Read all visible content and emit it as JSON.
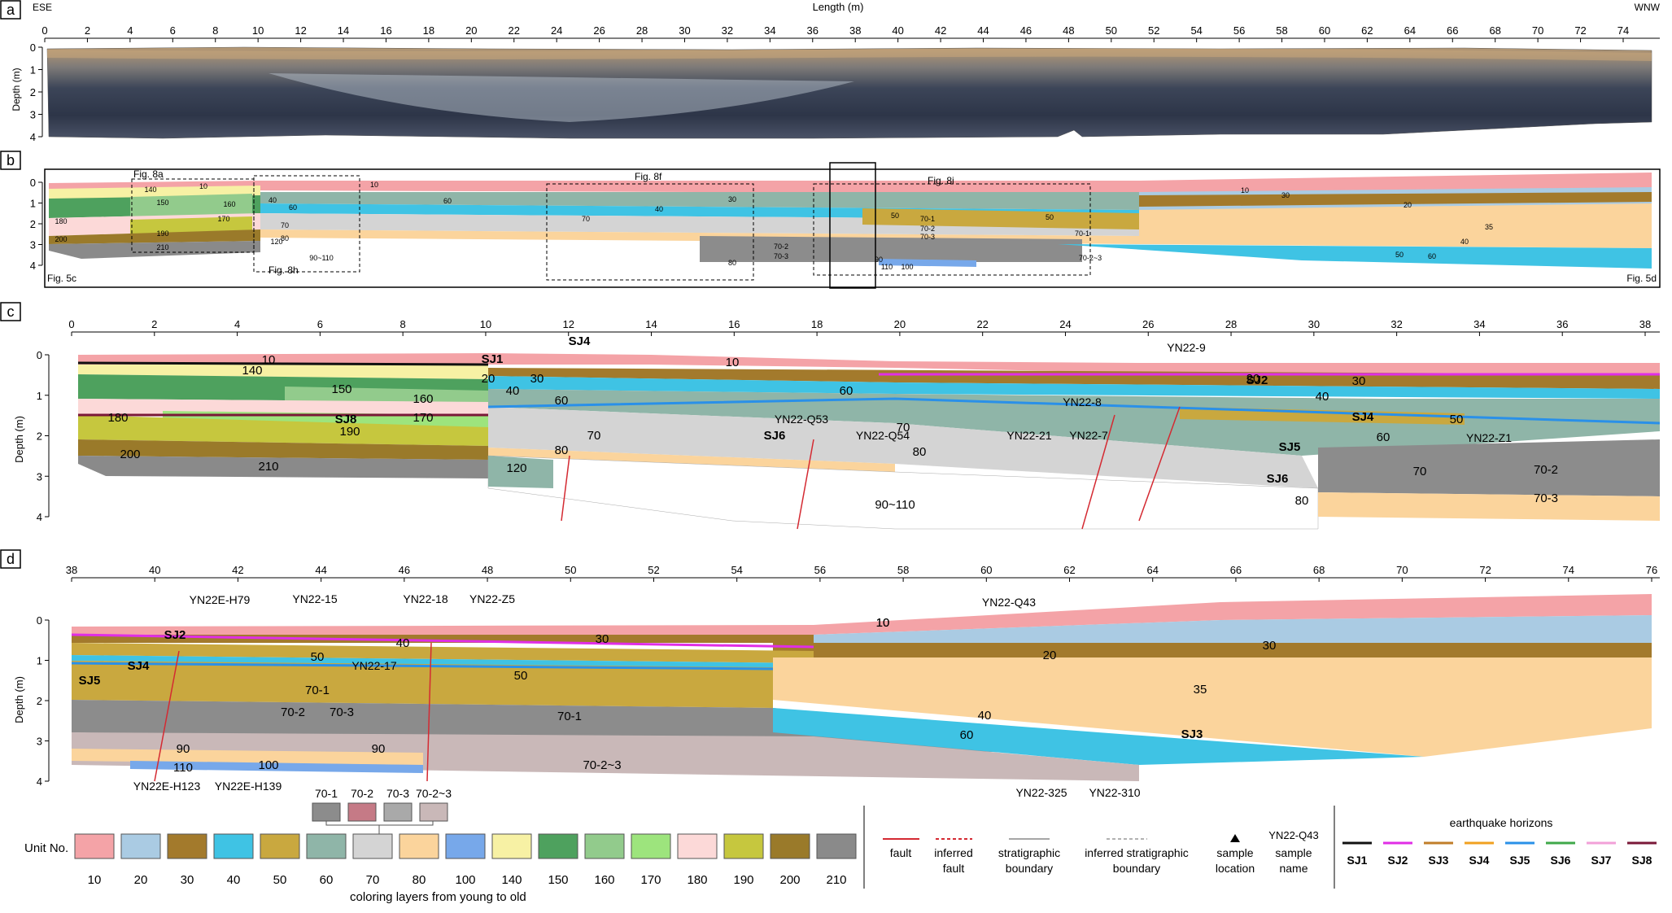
{
  "panels": {
    "a": "a",
    "b": "b",
    "c": "c",
    "d": "d"
  },
  "panel_a": {
    "left_label": "ESE",
    "right_label": "WNW",
    "top_axis_title": "Length (m)",
    "top_ticks": [
      "0",
      "2",
      "4",
      "6",
      "8",
      "10",
      "12",
      "14",
      "16",
      "18",
      "20",
      "22",
      "24",
      "26",
      "28",
      "30",
      "32",
      "34",
      "36",
      "38",
      "40",
      "42",
      "44",
      "46",
      "48",
      "50",
      "52",
      "54",
      "56",
      "58",
      "60",
      "62",
      "64",
      "66",
      "68",
      "70",
      "72",
      "74"
    ],
    "depth_title": "Depth (m)",
    "depth_ticks": [
      "0",
      "1",
      "2",
      "3",
      "4"
    ]
  },
  "panel_b": {
    "depth_ticks": [
      "0",
      "1",
      "2",
      "3",
      "4"
    ],
    "box_labels": [
      "Fig. 8a",
      "Fig. 8h",
      "Fig. 8f",
      "Fig. 8i"
    ],
    "corner_left": "Fig. 5c",
    "corner_right": "Fig. 5d",
    "units": [
      "140",
      "10",
      "150",
      "160",
      "180",
      "170",
      "190",
      "200",
      "210",
      "10",
      "40",
      "60",
      "120",
      "70",
      "80",
      "90~110",
      "60",
      "30",
      "40",
      "50",
      "70",
      "70-1",
      "70-2",
      "70-3",
      "80",
      "70-2",
      "70-3",
      "90",
      "110",
      "100",
      "50",
      "70-1",
      "70-2~3",
      "10",
      "20",
      "30",
      "35",
      "40",
      "50",
      "60"
    ]
  },
  "panel_c": {
    "top_ticks": [
      "0",
      "2",
      "4",
      "6",
      "8",
      "10",
      "12",
      "14",
      "16",
      "18",
      "20",
      "22",
      "24",
      "26",
      "28",
      "30",
      "32",
      "34",
      "36",
      "38"
    ],
    "depth_title": "Depth (m)",
    "depth_ticks": [
      "0",
      "1",
      "2",
      "3",
      "4"
    ],
    "units": [
      "10",
      "140",
      "150",
      "160",
      "180",
      "170",
      "190",
      "200",
      "210",
      "20",
      "30",
      "40",
      "60",
      "80",
      "70",
      "120",
      "10",
      "60",
      "70",
      "80",
      "90~110",
      "20",
      "30",
      "40",
      "50",
      "60",
      "70",
      "70-2",
      "70-3",
      "80"
    ],
    "horizons": [
      "SJ1",
      "SJ4",
      "SJ8",
      "SJ6",
      "SJ2",
      "SJ4",
      "SJ5",
      "SJ6"
    ],
    "samples": [
      "YN22-9",
      "YN22-8",
      "YN22-7",
      "YN22-21",
      "YN22-Q53",
      "YN22-Q54",
      "YN22-Z1"
    ]
  },
  "panel_d": {
    "top_ticks": [
      "38",
      "40",
      "42",
      "44",
      "46",
      "48",
      "50",
      "52",
      "54",
      "56",
      "58",
      "60",
      "62",
      "64",
      "66",
      "68",
      "70",
      "72",
      "74",
      "76"
    ],
    "depth_title": "Depth (m)",
    "depth_ticks": [
      "0",
      "1",
      "2",
      "3",
      "4"
    ],
    "units": [
      "10",
      "30",
      "40",
      "50",
      "50",
      "70-1",
      "70-2",
      "70-3",
      "70-1",
      "70-2~3",
      "90",
      "110",
      "100",
      "90",
      "10",
      "20",
      "30",
      "35",
      "40",
      "60"
    ],
    "horizons": [
      "SJ2",
      "SJ4",
      "SJ5",
      "SJ3"
    ],
    "samples": [
      "YN22E-H79",
      "YN22-15",
      "YN22-18",
      "YN22-Z5",
      "YN22-17",
      "YN22E-H123",
      "YN22E-H139",
      "YN22-Q43",
      "YN22-325",
      "YN22-310"
    ]
  },
  "legend": {
    "units": [
      {
        "label": "10",
        "color": "#f4a3a7"
      },
      {
        "label": "20",
        "color": "#aacbe3"
      },
      {
        "label": "30",
        "color": "#a37a2c"
      },
      {
        "label": "40",
        "color": "#3fc3e4"
      },
      {
        "label": "50",
        "color": "#c9a83f"
      },
      {
        "label": "60",
        "color": "#8fb5a8"
      },
      {
        "label": "70",
        "color": "#d4d4d4"
      },
      {
        "label": "80",
        "color": "#fbd49c"
      },
      {
        "label": "100",
        "color": "#77a8ea"
      },
      {
        "label": "140",
        "color": "#f7f1a4"
      },
      {
        "label": "150",
        "color": "#4ea15e"
      },
      {
        "label": "160",
        "color": "#92cb8c"
      },
      {
        "label": "170",
        "color": "#9de47d"
      },
      {
        "label": "180",
        "color": "#fcd9d8"
      },
      {
        "label": "190",
        "color": "#c6c73e"
      },
      {
        "label": "200",
        "color": "#9a7a2a"
      },
      {
        "label": "210",
        "color": "#8a8a8a"
      }
    ],
    "unit_no_label": "Unit No.",
    "caption": "coloring layers from young to old",
    "sub_units": [
      {
        "label": "70-1",
        "color": "#8c8c8c"
      },
      {
        "label": "70-2",
        "color": "#c57a86"
      },
      {
        "label": "70-3",
        "color": "#a9a9a9"
      },
      {
        "label": "70-2~3",
        "color": "#c9b8b8"
      }
    ],
    "symbols": {
      "fault": "fault",
      "inferred_fault_1": "inferred",
      "inferred_fault_2": "fault",
      "strat_1": "stratigraphic",
      "strat_2": "boundary",
      "inf_strat_1": "inferred stratigraphic",
      "inf_strat_2": "boundary",
      "sample_1": "sample",
      "sample_2": "location",
      "name_example": "YN22-Q43",
      "name_1": "sample",
      "name_2": "name"
    },
    "eq_title": "earthquake horizons",
    "eq_horizons": [
      {
        "label": "SJ1",
        "color": "#111111"
      },
      {
        "label": "SJ2",
        "color": "#e02ee6"
      },
      {
        "label": "SJ3",
        "color": "#c07e2a"
      },
      {
        "label": "SJ4",
        "color": "#f0a020"
      },
      {
        "label": "SJ5",
        "color": "#2a90e8"
      },
      {
        "label": "SJ6",
        "color": "#3fa84a"
      },
      {
        "label": "SJ7",
        "color": "#f2a0d8"
      },
      {
        "label": "SJ8",
        "color": "#7a1838"
      }
    ]
  }
}
